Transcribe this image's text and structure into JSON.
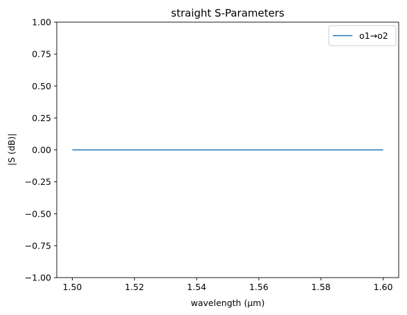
{
  "chart_data": {
    "type": "line",
    "title": "straight S-Parameters",
    "xlabel": "wavelength (µm)",
    "ylabel": "|S (dB)|",
    "xlim": [
      1.495,
      1.605
    ],
    "ylim": [
      -1.0,
      1.0
    ],
    "xticks": [
      1.5,
      1.52,
      1.54,
      1.56,
      1.58,
      1.6
    ],
    "xtick_labels": [
      "1.50",
      "1.52",
      "1.54",
      "1.56",
      "1.58",
      "1.60"
    ],
    "yticks": [
      -1.0,
      -0.75,
      -0.5,
      -0.25,
      0.0,
      0.25,
      0.5,
      0.75,
      1.0
    ],
    "ytick_labels": [
      "−1.00",
      "−0.75",
      "−0.50",
      "−0.25",
      "0.00",
      "0.25",
      "0.50",
      "0.75",
      "1.00"
    ],
    "grid": false,
    "legend_position": "top-right",
    "series": [
      {
        "name": "o1→o2",
        "color": "#1f77b4",
        "x": [
          1.5,
          1.52,
          1.54,
          1.56,
          1.58,
          1.6
        ],
        "y": [
          0.0,
          0.0,
          0.0,
          0.0,
          0.0,
          0.0
        ]
      }
    ]
  }
}
